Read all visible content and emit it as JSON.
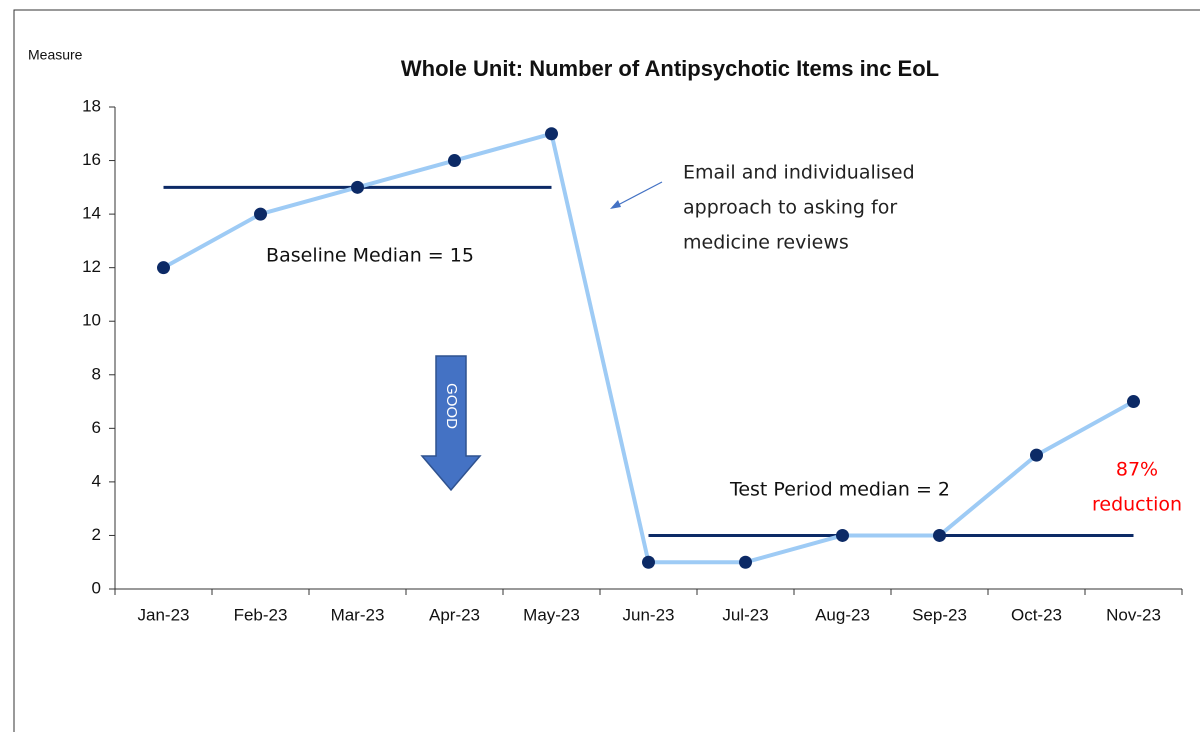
{
  "chart_data": {
    "type": "line",
    "title": "Whole Unit: Number of Antipsychotic Items inc EoL",
    "y_label": "Measure",
    "categories": [
      "Jan-23",
      "Feb-23",
      "Mar-23",
      "Apr-23",
      "May-23",
      "Jun-23",
      "Jul-23",
      "Aug-23",
      "Sep-23",
      "Oct-23",
      "Nov-23"
    ],
    "values": [
      12,
      14,
      15,
      16,
      17,
      1,
      1,
      2,
      2,
      5,
      7
    ],
    "line_color": "#9ecbf5",
    "marker_color": "#0c2a66",
    "ylim": [
      0,
      18
    ],
    "yticks": [
      0,
      2,
      4,
      6,
      8,
      10,
      12,
      14,
      16,
      18
    ],
    "reference_lines": [
      {
        "label": "Baseline Median = 15",
        "value": 15,
        "start": "Jan-23",
        "end": "May-23",
        "color": "#0c2a66"
      },
      {
        "label": "Test Period median = 2",
        "value": 2,
        "start": "Jun-23",
        "end": "Nov-23",
        "color": "#0c2a66"
      }
    ],
    "annotations": [
      {
        "lines": [
          "Email and individualised",
          "approach to asking for",
          "medicine reviews"
        ],
        "color": "#222222"
      },
      {
        "lines": [
          "87%",
          "reduction"
        ],
        "color": "#ff0000"
      }
    ],
    "direction_label": "GOOD"
  }
}
